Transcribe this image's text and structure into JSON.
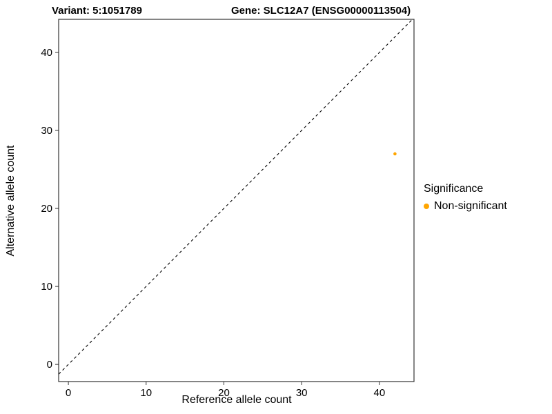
{
  "header": {
    "variant_title": "Variant: 5:1051789",
    "gene_title": "Gene: SLC12A7 (ENSG00000113504)"
  },
  "chart_data": {
    "type": "scatter",
    "title": "Variant: 5:1051789 | Gene: SLC12A7 (ENSG00000113504)",
    "xlabel": "Reference allele count",
    "ylabel": "Alternative allele count",
    "xlim": [
      -1.25,
      44.45
    ],
    "ylim": [
      -2.2,
      44.25
    ],
    "x_ticks": [
      0,
      10,
      20,
      30,
      40
    ],
    "y_ticks": [
      0,
      10,
      20,
      30,
      40
    ],
    "grid": false,
    "panel_border_color": "#333333",
    "identity_line": {
      "type": "y=x",
      "style": "dashed",
      "color": "#000000"
    },
    "series": [
      {
        "name": "Non-significant",
        "color": "#FFA500",
        "points": [
          {
            "x": 42,
            "y": 27
          }
        ]
      }
    ],
    "legend": {
      "title": "Significance",
      "position": "right",
      "entries": [
        {
          "label": "Non-significant",
          "color": "#FFA500"
        }
      ]
    }
  }
}
